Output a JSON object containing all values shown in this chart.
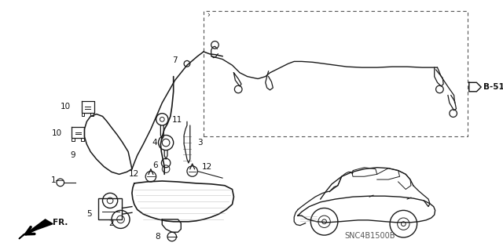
{
  "bg_color": "#ffffff",
  "figsize": [
    6.4,
    3.19
  ],
  "dpi": 100,
  "footer_text": "SNC4B1500B",
  "line_color": "#1a1a1a",
  "text_color": "#111111"
}
